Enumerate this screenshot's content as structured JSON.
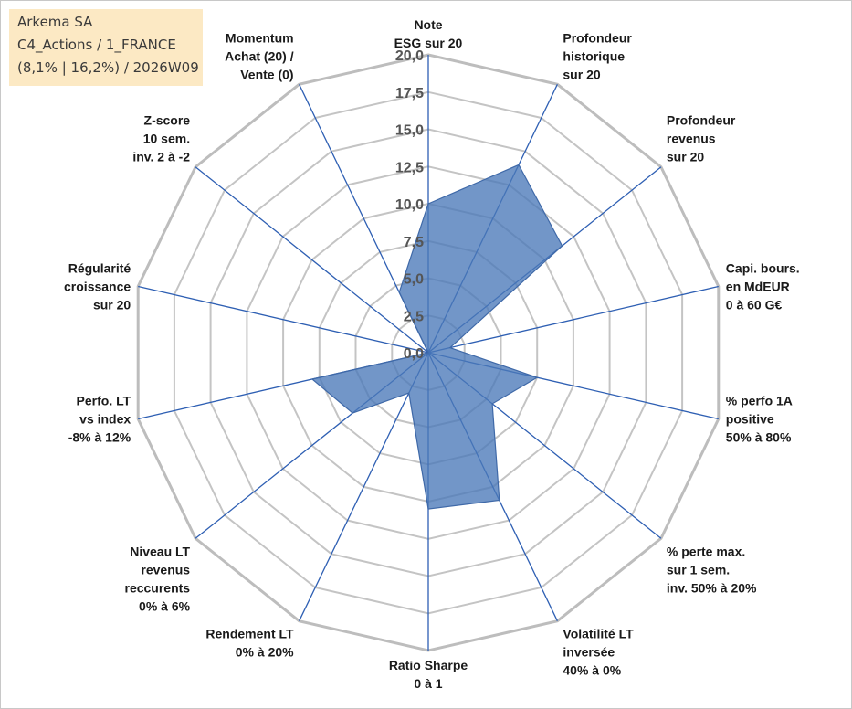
{
  "infobox": {
    "company": "Arkema SA",
    "portfolio": "C4_Actions / 1_FRANCE",
    "period": "(8,1% | 16,2%) / 2026W09"
  },
  "colors": {
    "series_fill": "#4a78b8",
    "spoke": "#2e5fb3",
    "ring": "#c4c4c4",
    "infobox_bg": "#fce9c4"
  },
  "chart_data": {
    "type": "radar",
    "title": "",
    "rmin": 0,
    "rmax": 20,
    "tick_labels": [
      "0,0",
      "2,5",
      "5,0",
      "7,5",
      "10,0",
      "12,5",
      "15,0",
      "17,5",
      "20,0"
    ],
    "grid_step": 2.5,
    "categories": [
      [
        "Note",
        "ESG sur 20"
      ],
      [
        "Profondeur",
        "historique",
        "sur 20"
      ],
      [
        "Profondeur",
        "revenus",
        "sur 20"
      ],
      [
        "Capi. bours.",
        "en MdEUR",
        "0 à 60 G€"
      ],
      [
        "% perfo 1A",
        "positive",
        "50% à 80%"
      ],
      [
        "% perte max.",
        "sur 1 sem.",
        "inv. 50% à 20%"
      ],
      [
        "Volatilité LT",
        "inversée",
        "40% à 0%"
      ],
      [
        "Ratio Sharpe",
        "0 à 1"
      ],
      [
        "Rendement LT",
        "0% à 20%"
      ],
      [
        "Niveau LT",
        "revenus",
        "reccurents",
        "0% à 6%"
      ],
      [
        "Perfo. LT",
        "vs index",
        "-8% à 12%"
      ],
      [
        "Régularité",
        "croissance",
        "sur 20"
      ],
      [
        "Z-score",
        "10 sem.",
        "inv. 2 à -2"
      ],
      [
        "Momentum",
        "Achat (20) /",
        "Vente (0)"
      ]
    ],
    "series": [
      {
        "name": "Arkema SA",
        "values": [
          10.0,
          14.0,
          11.5,
          1.5,
          7.5,
          5.5,
          11.0,
          10.5,
          3.0,
          6.5,
          8.0,
          0.0,
          0.0,
          4.5
        ]
      }
    ]
  }
}
